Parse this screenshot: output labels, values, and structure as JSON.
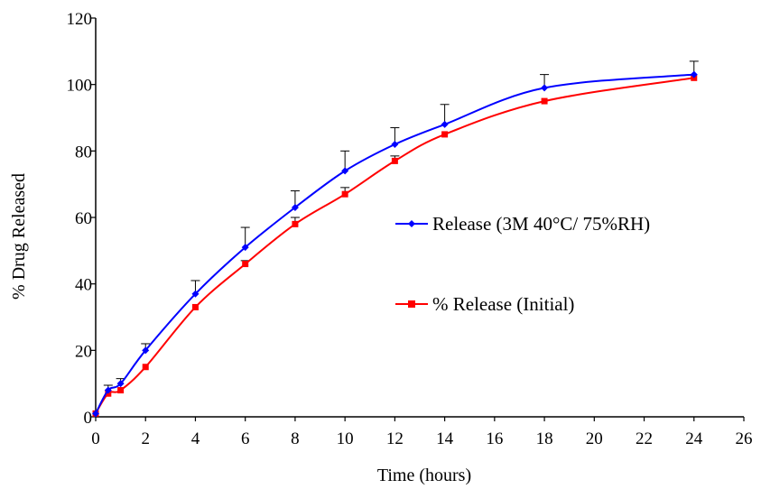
{
  "chart_data": {
    "type": "line",
    "title": "",
    "xlabel": "Time (hours)",
    "ylabel": "% Drug Released",
    "xlim": [
      0,
      26
    ],
    "ylim": [
      0,
      120
    ],
    "x_ticks": [
      0,
      2,
      4,
      6,
      8,
      10,
      12,
      14,
      16,
      18,
      20,
      22,
      24,
      26
    ],
    "y_ticks": [
      0,
      20,
      40,
      60,
      80,
      100,
      120
    ],
    "grid": false,
    "legend_position": "right",
    "series": [
      {
        "name": "Release (3M 40°C/ 75%RH)",
        "color": "#0000ff",
        "marker": "diamond",
        "x": [
          0,
          0.5,
          1,
          2,
          4,
          6,
          8,
          10,
          12,
          14,
          18,
          24
        ],
        "y": [
          1,
          8,
          10,
          20,
          37,
          51,
          63,
          74,
          82,
          88,
          99,
          103
        ],
        "error": [
          0,
          1.5,
          1.5,
          2,
          4,
          6,
          5,
          6,
          5,
          6,
          4,
          4
        ]
      },
      {
        "name": "% Release (Initial)",
        "color": "#ff0000",
        "marker": "square",
        "x": [
          0,
          0.5,
          1,
          2,
          4,
          6,
          8,
          10,
          12,
          14,
          18,
          24
        ],
        "y": [
          1,
          7,
          8,
          15,
          33,
          46,
          58,
          67,
          77,
          85,
          95,
          102
        ],
        "error": [
          0,
          0,
          0,
          0,
          0,
          1,
          2,
          2,
          1.5,
          0,
          0,
          0
        ]
      }
    ]
  }
}
